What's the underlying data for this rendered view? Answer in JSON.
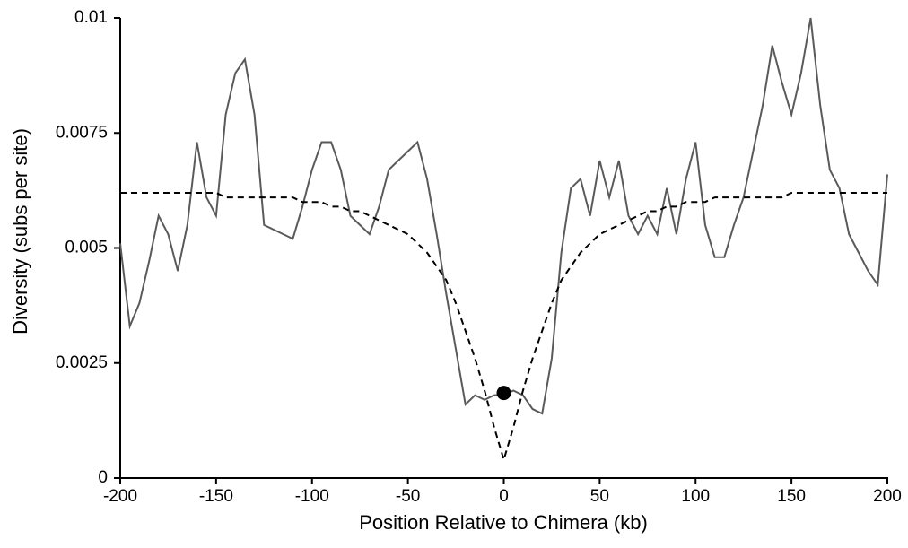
{
  "chart_data": {
    "type": "line",
    "xlabel": "Position Relative to Chimera (kb)",
    "ylabel": "Diversity (subs per site)",
    "x": [
      -200,
      -195,
      -190,
      -185,
      -180,
      -175,
      -170,
      -165,
      -160,
      -155,
      -150,
      -145,
      -140,
      -135,
      -130,
      -125,
      -120,
      -115,
      -110,
      -105,
      -100,
      -95,
      -90,
      -85,
      -80,
      -75,
      -70,
      -65,
      -60,
      -55,
      -50,
      -45,
      -40,
      -35,
      -30,
      -25,
      -20,
      -15,
      -10,
      -5,
      0,
      5,
      10,
      15,
      20,
      25,
      30,
      35,
      40,
      45,
      50,
      55,
      60,
      65,
      70,
      75,
      80,
      85,
      90,
      95,
      100,
      105,
      110,
      115,
      120,
      125,
      130,
      135,
      140,
      145,
      150,
      155,
      160,
      165,
      170,
      175,
      180,
      185,
      190,
      195,
      200
    ],
    "series": [
      {
        "color": "#5a5a5a",
        "style": "solid",
        "values": [
          0.0051,
          0.0033,
          0.0038,
          0.0047,
          0.0057,
          0.0053,
          0.0045,
          0.0055,
          0.0073,
          0.0061,
          0.0057,
          0.0079,
          0.0088,
          0.0091,
          0.0079,
          0.0055,
          0.0054,
          0.0053,
          0.0052,
          0.0059,
          0.0067,
          0.0073,
          0.0073,
          0.0067,
          0.0057,
          0.0055,
          0.0053,
          0.0059,
          0.0067,
          0.0069,
          0.0071,
          0.0073,
          0.0065,
          0.0053,
          0.004,
          0.0028,
          0.0016,
          0.0018,
          0.0017,
          0.0018,
          0.0018,
          0.0019,
          0.0018,
          0.0015,
          0.0014,
          0.0026,
          0.0049,
          0.0063,
          0.0065,
          0.0057,
          0.0069,
          0.0061,
          0.0069,
          0.0057,
          0.0053,
          0.0057,
          0.0053,
          0.0063,
          0.0053,
          0.0065,
          0.0073,
          0.0055,
          0.0048,
          0.0048,
          0.0055,
          0.0061,
          0.0071,
          0.0081,
          0.0094,
          0.0086,
          0.0079,
          0.0088,
          0.01,
          0.0081,
          0.0067,
          0.0063,
          0.0053,
          0.0049,
          0.0045,
          0.0042,
          0.0066
        ]
      },
      {
        "color": "#000000",
        "style": "dashed",
        "values": [
          0.0062,
          0.0062,
          0.0062,
          0.0062,
          0.0062,
          0.0062,
          0.0062,
          0.0062,
          0.0062,
          0.0062,
          0.0062,
          0.0061,
          0.0061,
          0.0061,
          0.0061,
          0.0061,
          0.0061,
          0.0061,
          0.0061,
          0.006,
          0.006,
          0.006,
          0.0059,
          0.0059,
          0.0058,
          0.0058,
          0.0057,
          0.0056,
          0.0055,
          0.0054,
          0.0053,
          0.0051,
          0.0049,
          0.0046,
          0.0043,
          0.0038,
          0.0032,
          0.0026,
          0.0019,
          0.0011,
          0.0004,
          0.0011,
          0.0019,
          0.0026,
          0.0032,
          0.0038,
          0.0043,
          0.0046,
          0.0049,
          0.0051,
          0.0053,
          0.0054,
          0.0055,
          0.0056,
          0.0057,
          0.0058,
          0.0058,
          0.0059,
          0.0059,
          0.006,
          0.006,
          0.006,
          0.0061,
          0.0061,
          0.0061,
          0.0061,
          0.0061,
          0.0061,
          0.0061,
          0.0061,
          0.0062,
          0.0062,
          0.0062,
          0.0062,
          0.0062,
          0.0062,
          0.0062,
          0.0062,
          0.0062,
          0.0062,
          0.0062
        ]
      }
    ],
    "highlight": {
      "x": 0,
      "y": 0.00185,
      "color": "#000000"
    },
    "xlim": [
      -200,
      200
    ],
    "xticks": [
      -200,
      -150,
      -100,
      -50,
      0,
      50,
      100,
      150,
      200
    ],
    "ylim": [
      0,
      0.01
    ],
    "yticks": [
      0,
      0.0025,
      0.005,
      0.0075,
      0.01
    ]
  }
}
